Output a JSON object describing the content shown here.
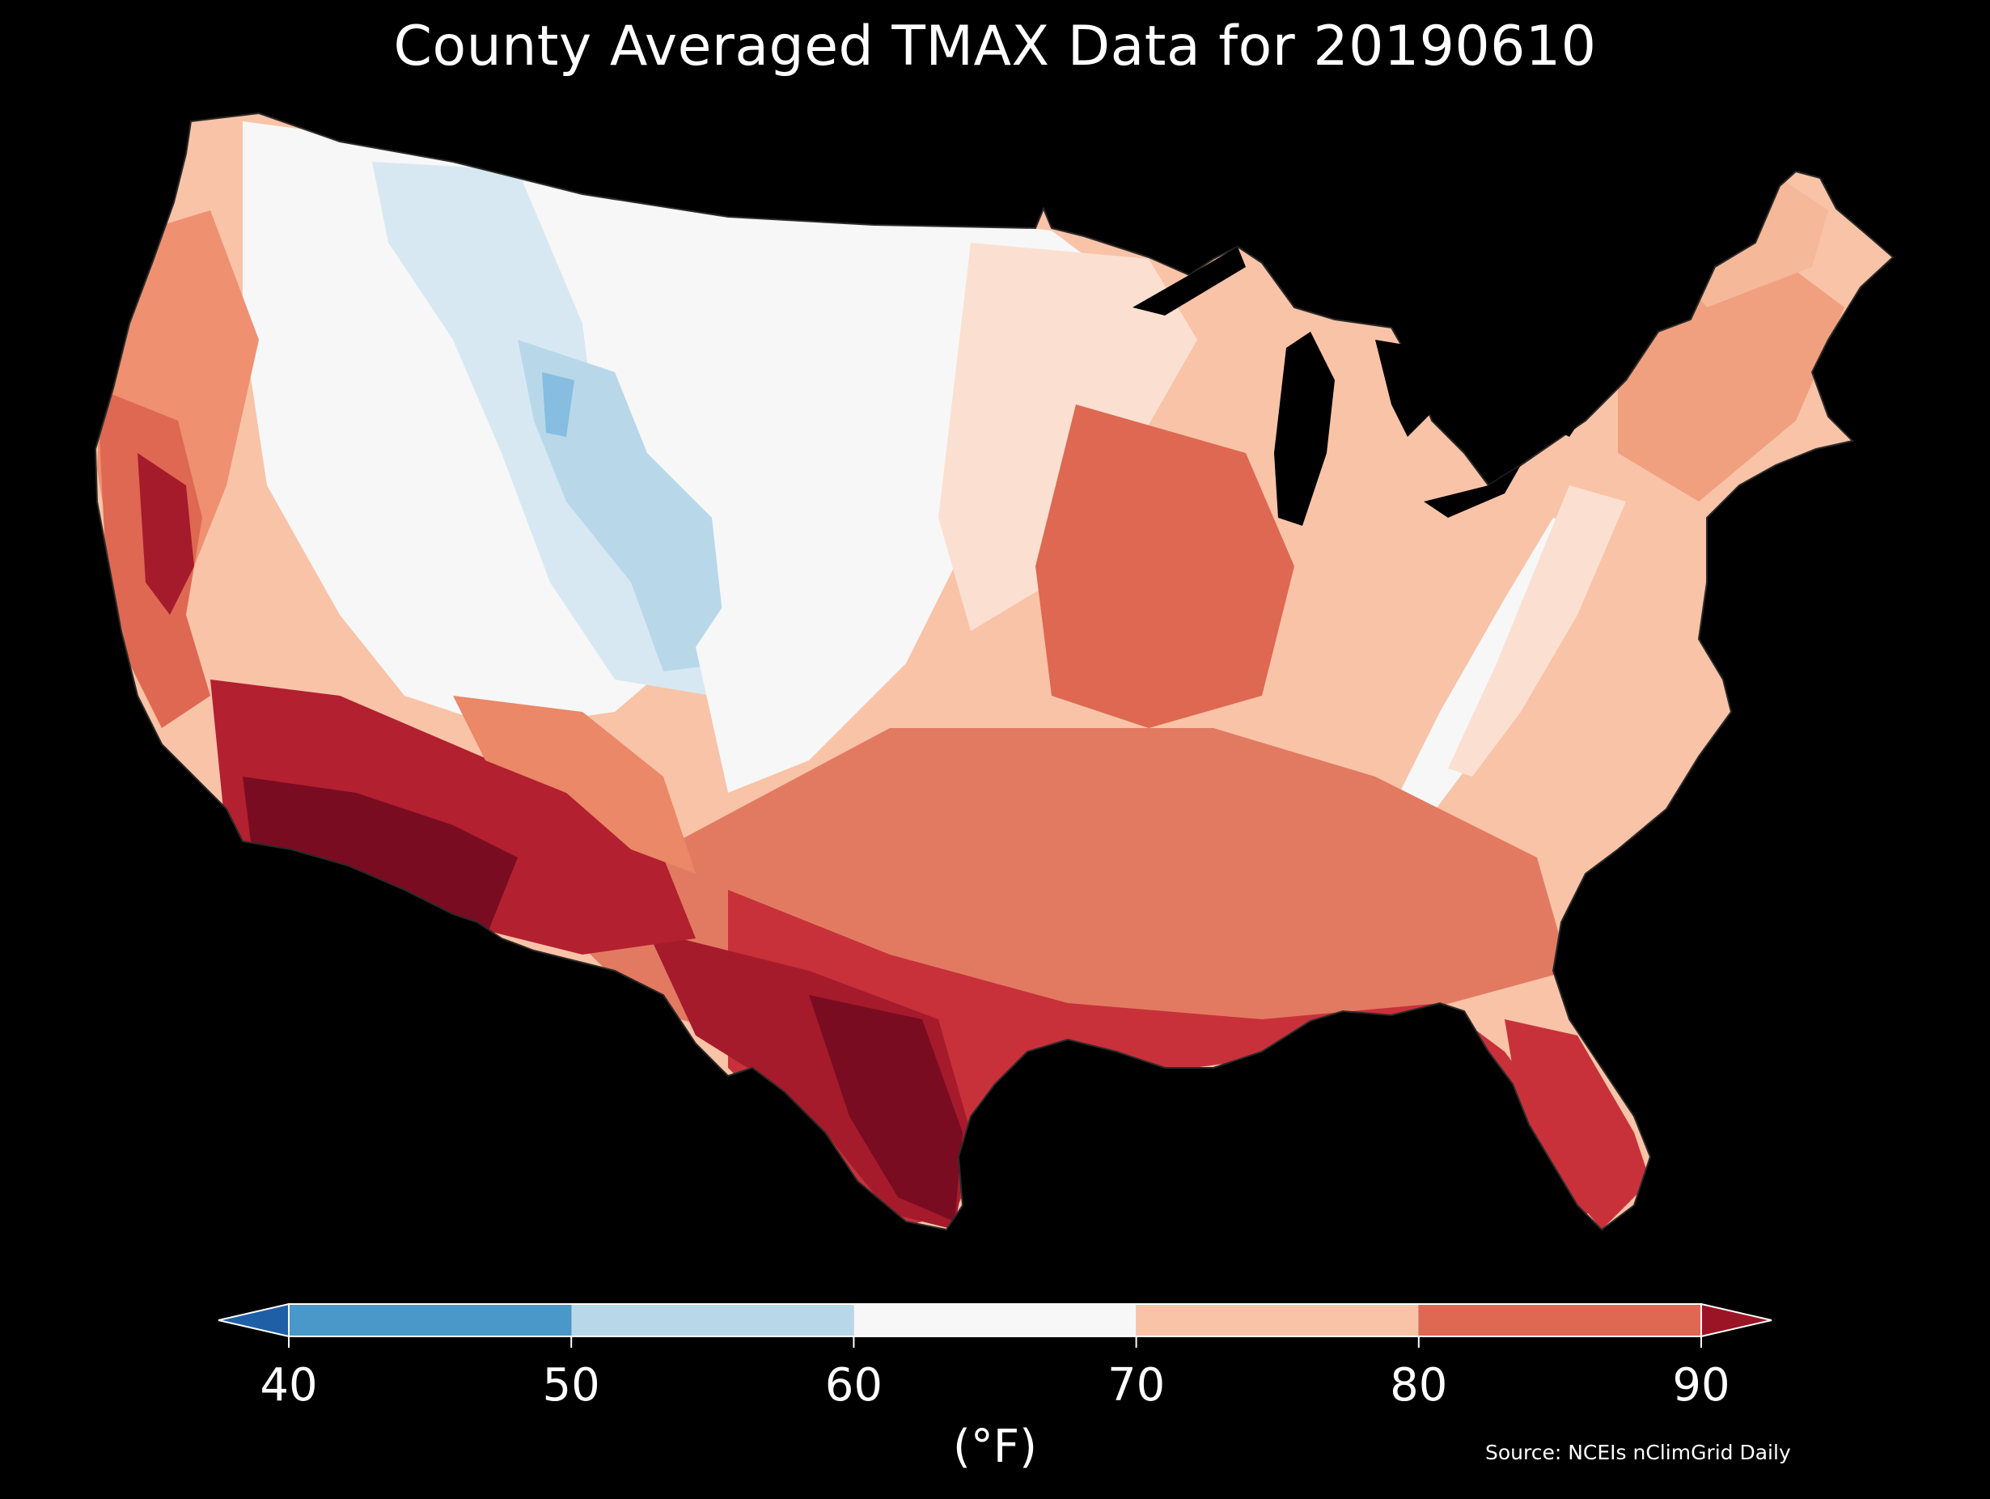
{
  "title": "County Averaged TMAX Data for 20190610",
  "source": "Source: NCEIs nClimGrid Daily",
  "colorbar": {
    "unit": "(°F)",
    "ticks": [
      "40",
      "50",
      "60",
      "70",
      "80",
      "90"
    ],
    "bins": [
      {
        "from": 40,
        "to": 50,
        "color": "#4a97c9"
      },
      {
        "from": 50,
        "to": 60,
        "color": "#b8d8ea"
      },
      {
        "from": 60,
        "to": 70,
        "color": "#f7f7f7"
      },
      {
        "from": 70,
        "to": 80,
        "color": "#f9c3a7"
      },
      {
        "from": 80,
        "to": 90,
        "color": "#de6852"
      }
    ],
    "under_color": "#1f5fa6",
    "over_color": "#9b1426"
  },
  "map": {
    "background": "#000000",
    "lake_color": "#000000",
    "border_color": "#2a2a2a"
  }
}
